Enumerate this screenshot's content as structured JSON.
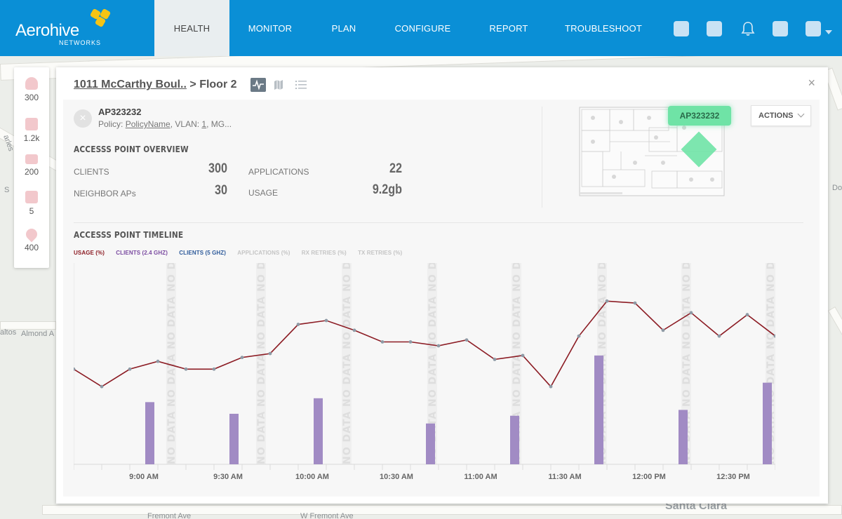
{
  "nav": {
    "logo_text": "Aerohive",
    "logo_sub": "NETWORKS",
    "items": [
      {
        "label": "HEALTH",
        "active": true
      },
      {
        "label": "MONITOR"
      },
      {
        "label": "PLAN"
      },
      {
        "label": "CONFIGURE"
      },
      {
        "label": "REPORT"
      },
      {
        "label": "TROUBLESHOOT"
      }
    ],
    "icons": [
      "app-icon",
      "app-icon",
      "bell-icon",
      "app-icon",
      "user-icon"
    ]
  },
  "rail": [
    {
      "icon": "user-icon",
      "value": "300"
    },
    {
      "icon": "video-icon",
      "value": "1.2k"
    },
    {
      "icon": "router-icon",
      "value": "200"
    },
    {
      "icon": "switch-icon",
      "value": "5"
    },
    {
      "icon": "location-pin-icon",
      "value": "400"
    }
  ],
  "map_labels": [
    {
      "text": "altos",
      "big": false
    },
    {
      "text": "Almond A",
      "big": false
    },
    {
      "text": "Santa Clara",
      "big": true
    },
    {
      "text": "Fremont Ave",
      "big": false
    },
    {
      "text": "W Fremont Ave",
      "big": false
    },
    {
      "text": "arles",
      "big": false
    },
    {
      "text": "S",
      "big": false
    },
    {
      "text": "Do",
      "big": false
    }
  ],
  "panel": {
    "breadcrumb_link": "1011 McCarthy Boul..",
    "breadcrumb_sep": " > ",
    "breadcrumb_current": "Floor 2",
    "close": "×",
    "ap": {
      "name": "AP323232",
      "policy_label": "Policy: ",
      "policy_name": "PolicyName",
      "vlan_label": ", VLAN: ",
      "vlan": "1",
      "trail": ", MG..."
    },
    "overview_title": "ACCESSS POINT OVERVIEW",
    "overview": {
      "clients_label": "CLIENTS",
      "clients": "300",
      "neighbors_label": "NEIGHBOR APs",
      "neighbors": "30",
      "apps_label": "APPLICATIONS",
      "apps": "22",
      "usage_label": "USAGE",
      "usage": "9.2gb"
    },
    "floor_badge": "AP323232",
    "actions_label": "ACTIONS",
    "timeline_title": "ACCESSS POINT TIMELINE"
  },
  "chart_data": {
    "type": "line",
    "legend": [
      {
        "name": "USAGE (%)",
        "color": "#8c1c24",
        "active": true
      },
      {
        "name": "CLIENTS (2.4 GHZ)",
        "color": "#7a4aa0",
        "active": true
      },
      {
        "name": "CLIENTS (5 GHZ)",
        "color": "#2d5a9a",
        "active": true
      },
      {
        "name": "APPLICATIONS (%)",
        "color": "#c4c4c4",
        "active": false
      },
      {
        "name": "RX RETRIES (%)",
        "color": "#c4c4c4",
        "active": false
      },
      {
        "name": "TX RETRIES (%)",
        "color": "#c4c4c4",
        "active": false
      }
    ],
    "x_tick_labels": [
      "9:00 AM",
      "9:30 AM",
      "10:00 AM",
      "10:30 AM",
      "11:00 AM",
      "11:30 AM",
      "12:00 PM",
      "12:30 PM"
    ],
    "no_data_label": "NO DATA",
    "usage_series": {
      "name": "USAGE (%)",
      "values": [
        49,
        40,
        49,
        53,
        49,
        49,
        55,
        57,
        72,
        74,
        69,
        63,
        63,
        61,
        64,
        54,
        56,
        40,
        66,
        84,
        83,
        69,
        78,
        66,
        77,
        66
      ]
    },
    "clients_24_series": {
      "name": "CLIENTS (2.4 GHZ)",
      "values": [
        null,
        null,
        null,
        32,
        null,
        null,
        26,
        null,
        null,
        34,
        null,
        null,
        null,
        21,
        null,
        null,
        25,
        null,
        null,
        56,
        null,
        null,
        28,
        null,
        null,
        42
      ]
    }
  }
}
